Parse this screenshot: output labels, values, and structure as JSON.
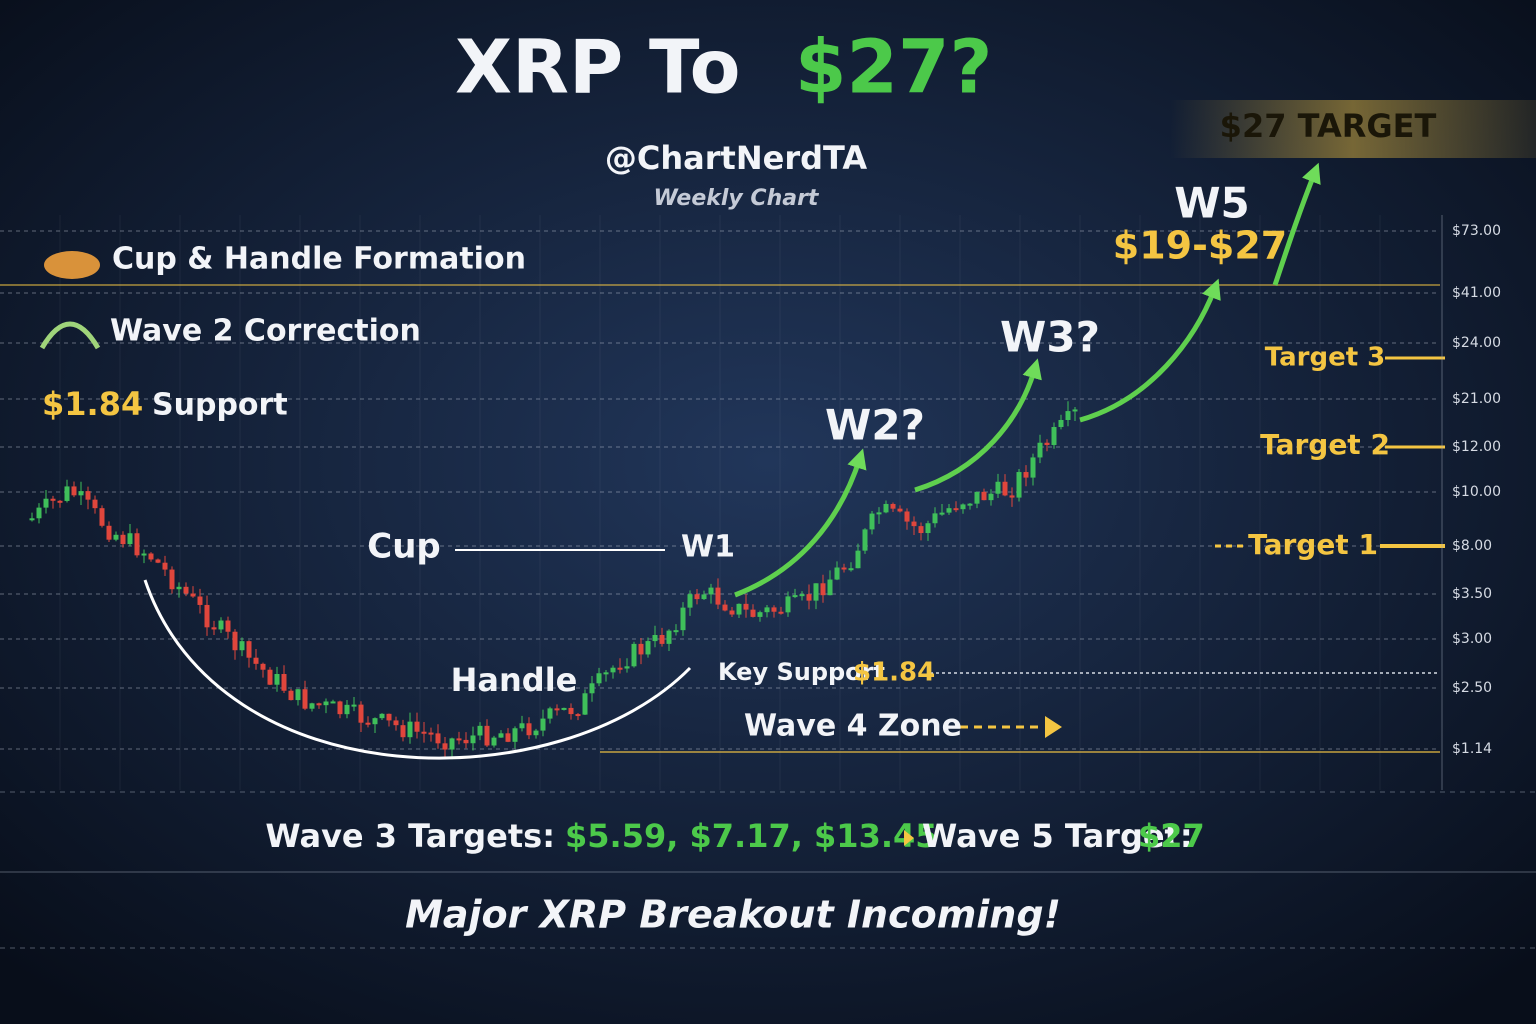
{
  "header": {
    "title_white": "XRP To",
    "title_green": "$27?",
    "author": "@ChartNerdTA",
    "timeframe": "Weekly Chart"
  },
  "legend": [
    {
      "label": "Cup & Handle Formation"
    },
    {
      "label": "Wave 2 Correction"
    },
    {
      "value": "$1.84",
      "label": "Support"
    }
  ],
  "axis_labels": [
    "$73.00",
    "$41.00",
    "$24.00",
    "$21.00",
    "$12.00",
    "$10.00",
    "$8.00",
    "$3.50",
    "$3.00",
    "$2.50",
    "$1.14"
  ],
  "annotations": {
    "cup": "Cup",
    "handle": "Handle",
    "w1": "W1",
    "w2": "W2?",
    "w3": "W3?",
    "w5": "W5",
    "w5_range": "$19-$27",
    "target_banner": "$27 TARGET",
    "target3": "Target 3",
    "target2": "Target 2",
    "target1": "Target 1",
    "key_support_label": "Key Support",
    "key_support_value": "$1.84",
    "wave4": "Wave 4 Zone"
  },
  "footer": {
    "wave3_label": "Wave 3 Targets:",
    "wave3_values": "$5.59, $7.17, $13.45",
    "wave5_label": "Wave 5 Target:",
    "wave5_value": "$27",
    "tagline": "Major XRP Breakout Incoming!"
  }
}
